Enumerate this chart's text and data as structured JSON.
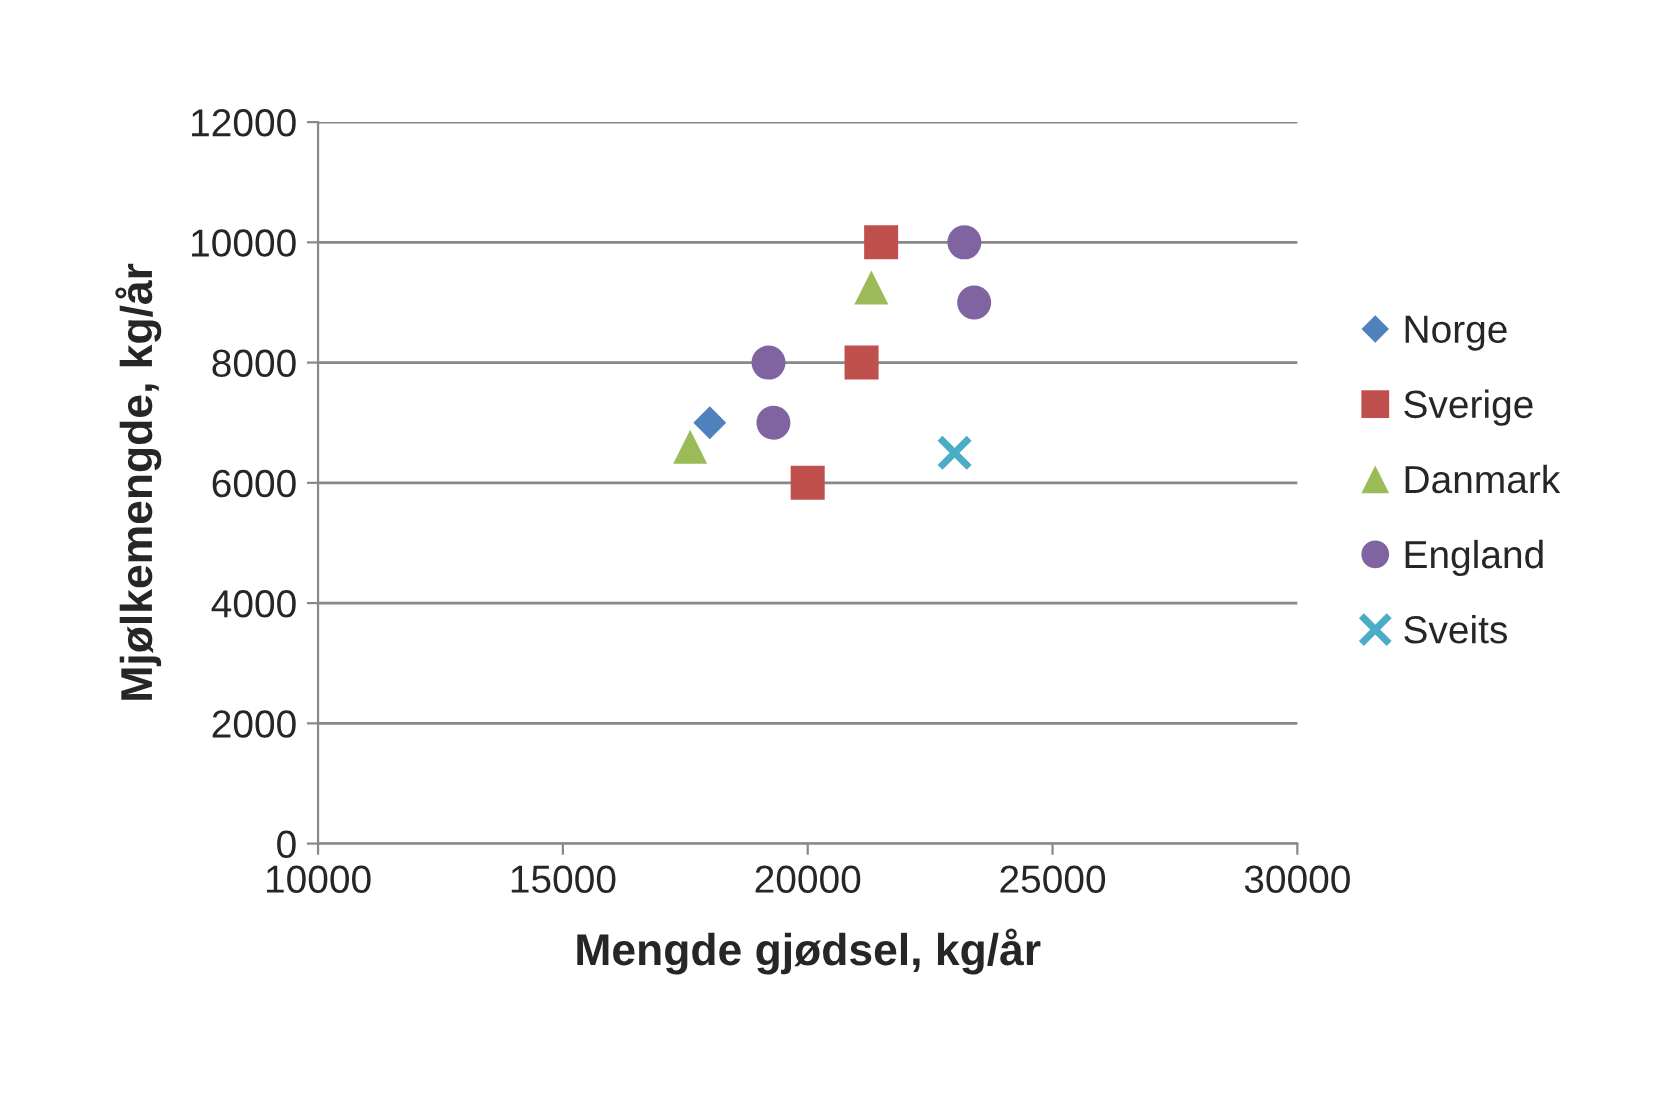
{
  "chart_data": {
    "type": "scatter",
    "xlabel": "Mengde gjødsel, kg/år",
    "ylabel": "Mjølkemengde, kg/år",
    "xlim": [
      10000,
      30000
    ],
    "xticks": [
      10000,
      15000,
      20000,
      25000,
      30000
    ],
    "ylim": [
      0,
      12000
    ],
    "yticks": [
      0,
      2000,
      4000,
      6000,
      8000,
      10000,
      12000
    ],
    "grid": "y",
    "legend": "right",
    "series": [
      {
        "name": "Norge",
        "color": "#4f81bd",
        "marker": "diamond",
        "x": [
          18000
        ],
        "values": [
          7000
        ]
      },
      {
        "name": "Sverige",
        "color": "#c0504d",
        "marker": "square",
        "x": [
          21500,
          21100,
          20000
        ],
        "values": [
          10000,
          8000,
          6000
        ]
      },
      {
        "name": "Danmark",
        "color": "#9bbb59",
        "marker": "triangle",
        "x": [
          17600,
          21300
        ],
        "values": [
          6600,
          9250
        ]
      },
      {
        "name": "England",
        "color": "#8064a2",
        "marker": "circle",
        "x": [
          19200,
          19300,
          23200,
          23400
        ],
        "values": [
          8000,
          7000,
          10000,
          9000
        ]
      },
      {
        "name": "Sveits",
        "color": "#4bacc6",
        "marker": "cross",
        "x": [
          23000
        ],
        "values": [
          6500
        ]
      }
    ]
  }
}
